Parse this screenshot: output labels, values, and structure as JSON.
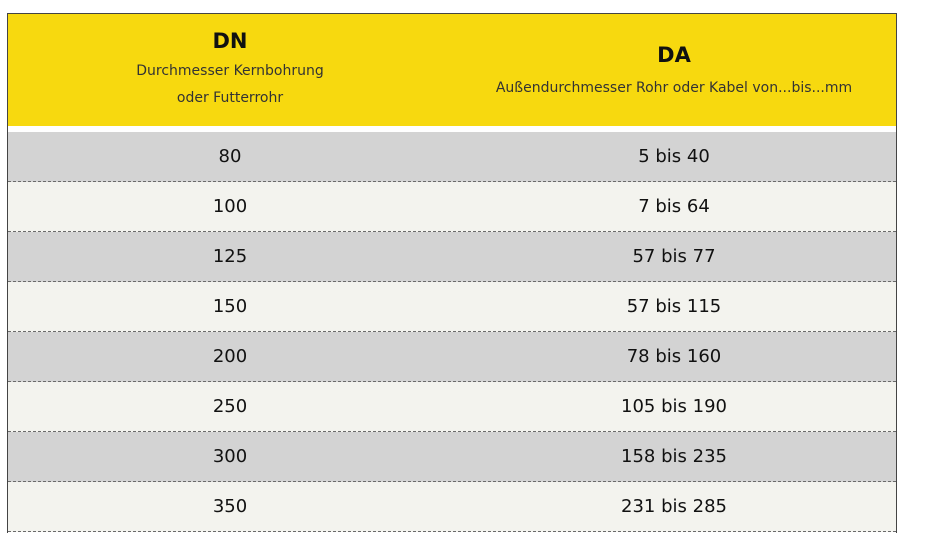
{
  "header": {
    "dn_title": "DN",
    "dn_sub1": "Durchmesser Kernbohrung",
    "dn_sub2": "oder Futterrohr",
    "da_title": "DA",
    "da_sub": "Außendurchmesser Rohr oder Kabel von...bis...mm"
  },
  "rows": [
    {
      "dn": "80",
      "da": "5 bis 40"
    },
    {
      "dn": "100",
      "da": "7 bis 64"
    },
    {
      "dn": "125",
      "da": "57 bis 77"
    },
    {
      "dn": "150",
      "da": "57 bis 115"
    },
    {
      "dn": "200",
      "da": "78 bis 160"
    },
    {
      "dn": "250",
      "da": "105 bis 190"
    },
    {
      "dn": "300",
      "da": "158 bis 235"
    },
    {
      "dn": "350",
      "da": "231 bis 285"
    }
  ],
  "colors": {
    "header_bg": "#f7d90f",
    "row_dark": "#d3d3d3",
    "row_light": "#f3f3ee"
  }
}
